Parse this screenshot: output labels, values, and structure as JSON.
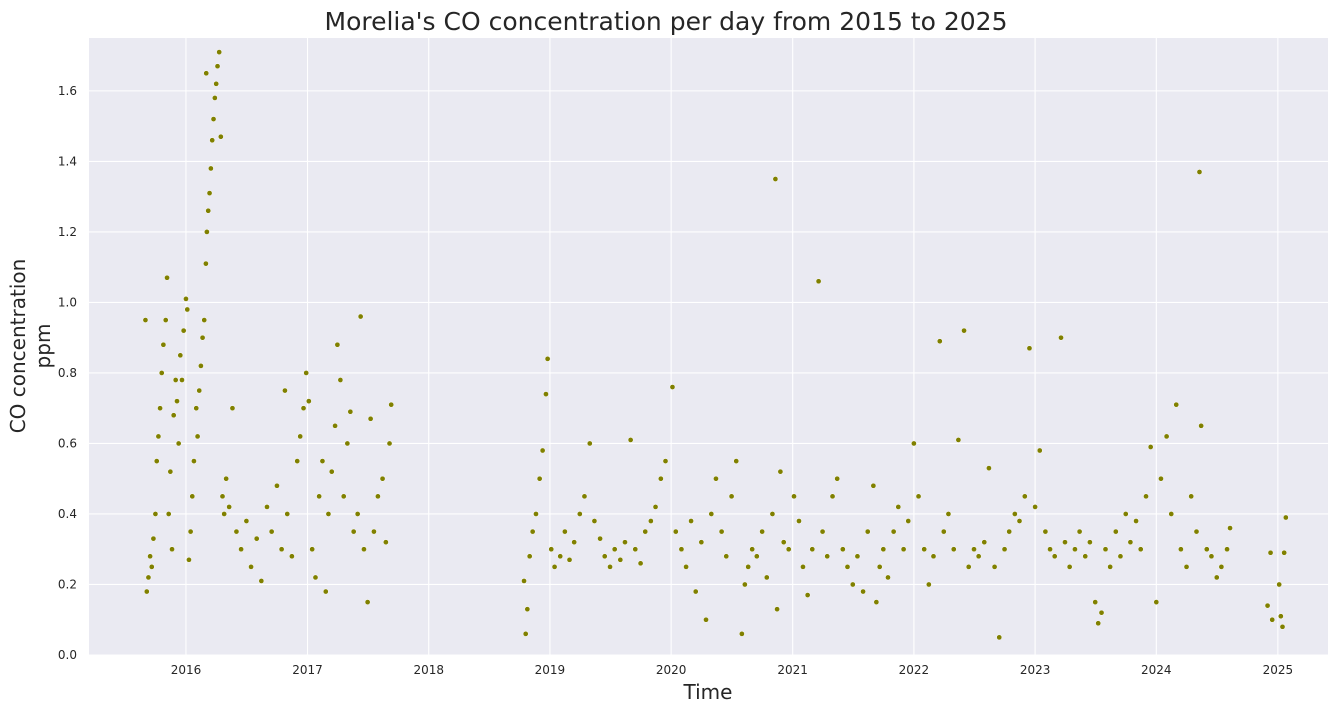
{
  "chart_data": {
    "type": "scatter",
    "title": "Morelia's CO concentration per day from 2015 to 2025",
    "xlabel": "Time",
    "ylabel_lines": [
      "CO concentration",
      "ppm"
    ],
    "x_axis": {
      "kind": "date",
      "range": [
        "2015-03-15",
        "2025-06-01"
      ],
      "tick_labels": [
        "2016",
        "2017",
        "2018",
        "2019",
        "2020",
        "2021",
        "2022",
        "2023",
        "2024",
        "2025"
      ]
    },
    "y_axis": {
      "range": [
        0.0,
        1.75
      ],
      "ticks": [
        0.0,
        0.2,
        0.4,
        0.6,
        0.8,
        1.0,
        1.2,
        1.4,
        1.6
      ]
    },
    "grid": true,
    "legend": "none",
    "colors": {
      "background": "#eaeaf2",
      "grid": "#ffffff",
      "marker": "#808000",
      "text": "#262626"
    },
    "series": [
      {
        "points": [
          [
            "2015-09-01",
            0.95
          ],
          [
            "2015-09-05",
            0.18
          ],
          [
            "2015-09-10",
            0.22
          ],
          [
            "2015-09-15",
            0.28
          ],
          [
            "2015-09-20",
            0.25
          ],
          [
            "2015-09-25",
            0.33
          ],
          [
            "2015-10-01",
            0.4
          ],
          [
            "2015-10-05",
            0.55
          ],
          [
            "2015-10-10",
            0.62
          ],
          [
            "2015-10-15",
            0.7
          ],
          [
            "2015-10-20",
            0.8
          ],
          [
            "2015-10-25",
            0.88
          ],
          [
            "2015-11-01",
            0.95
          ],
          [
            "2015-11-05",
            1.07
          ],
          [
            "2015-11-10",
            0.4
          ],
          [
            "2015-11-15",
            0.52
          ],
          [
            "2015-11-20",
            0.3
          ],
          [
            "2015-11-25",
            0.68
          ],
          [
            "2015-12-01",
            0.78
          ],
          [
            "2015-12-05",
            0.72
          ],
          [
            "2015-12-10",
            0.6
          ],
          [
            "2015-12-15",
            0.85
          ],
          [
            "2015-12-20",
            0.78
          ],
          [
            "2015-12-25",
            0.92
          ],
          [
            "2016-01-01",
            1.01
          ],
          [
            "2016-01-05",
            0.98
          ],
          [
            "2016-01-10",
            0.27
          ],
          [
            "2016-01-15",
            0.35
          ],
          [
            "2016-01-20",
            0.45
          ],
          [
            "2016-01-25",
            0.55
          ],
          [
            "2016-02-01",
            0.7
          ],
          [
            "2016-02-05",
            0.62
          ],
          [
            "2016-02-10",
            0.75
          ],
          [
            "2016-02-15",
            0.82
          ],
          [
            "2016-02-20",
            0.9
          ],
          [
            "2016-02-25",
            0.95
          ],
          [
            "2016-03-01",
            1.11
          ],
          [
            "2016-03-04",
            1.2
          ],
          [
            "2016-03-08",
            1.26
          ],
          [
            "2016-03-12",
            1.31
          ],
          [
            "2016-03-16",
            1.38
          ],
          [
            "2016-03-20",
            1.46
          ],
          [
            "2016-03-24",
            1.52
          ],
          [
            "2016-03-28",
            1.58
          ],
          [
            "2016-04-01",
            1.62
          ],
          [
            "2016-04-05",
            1.67
          ],
          [
            "2016-04-10",
            1.71
          ],
          [
            "2016-03-02",
            1.65
          ],
          [
            "2016-04-15",
            1.47
          ],
          [
            "2016-04-20",
            0.45
          ],
          [
            "2016-04-25",
            0.4
          ],
          [
            "2016-05-01",
            0.5
          ],
          [
            "2016-05-10",
            0.42
          ],
          [
            "2016-05-20",
            0.7
          ],
          [
            "2016-06-01",
            0.35
          ],
          [
            "2016-06-15",
            0.3
          ],
          [
            "2016-07-01",
            0.38
          ],
          [
            "2016-07-15",
            0.25
          ],
          [
            "2016-08-01",
            0.33
          ],
          [
            "2016-08-15",
            0.21
          ],
          [
            "2016-09-01",
            0.42
          ],
          [
            "2016-09-15",
            0.35
          ],
          [
            "2016-10-01",
            0.48
          ],
          [
            "2016-10-15",
            0.3
          ],
          [
            "2016-10-25",
            0.75
          ],
          [
            "2016-11-01",
            0.4
          ],
          [
            "2016-11-15",
            0.28
          ],
          [
            "2016-12-01",
            0.55
          ],
          [
            "2016-12-10",
            0.62
          ],
          [
            "2016-12-20",
            0.7
          ],
          [
            "2016-12-28",
            0.8
          ],
          [
            "2017-01-05",
            0.72
          ],
          [
            "2017-01-15",
            0.3
          ],
          [
            "2017-01-25",
            0.22
          ],
          [
            "2017-02-05",
            0.45
          ],
          [
            "2017-02-15",
            0.55
          ],
          [
            "2017-02-25",
            0.18
          ],
          [
            "2017-03-05",
            0.4
          ],
          [
            "2017-03-15",
            0.52
          ],
          [
            "2017-03-25",
            0.65
          ],
          [
            "2017-04-01",
            0.88
          ],
          [
            "2017-04-10",
            0.78
          ],
          [
            "2017-04-20",
            0.45
          ],
          [
            "2017-05-01",
            0.6
          ],
          [
            "2017-05-10",
            0.69
          ],
          [
            "2017-05-20",
            0.35
          ],
          [
            "2017-06-01",
            0.4
          ],
          [
            "2017-06-10",
            0.96
          ],
          [
            "2017-06-20",
            0.3
          ],
          [
            "2017-07-01",
            0.15
          ],
          [
            "2017-07-10",
            0.67
          ],
          [
            "2017-07-20",
            0.35
          ],
          [
            "2017-08-01",
            0.45
          ],
          [
            "2017-08-15",
            0.5
          ],
          [
            "2017-08-25",
            0.32
          ],
          [
            "2017-09-05",
            0.6
          ],
          [
            "2017-09-10",
            0.71
          ],
          [
            "2018-10-15",
            0.21
          ],
          [
            "2018-10-20",
            0.06
          ],
          [
            "2018-10-25",
            0.13
          ],
          [
            "2018-11-01",
            0.28
          ],
          [
            "2018-11-10",
            0.35
          ],
          [
            "2018-11-20",
            0.4
          ],
          [
            "2018-12-01",
            0.5
          ],
          [
            "2018-12-10",
            0.58
          ],
          [
            "2018-12-20",
            0.74
          ],
          [
            "2018-12-25",
            0.84
          ],
          [
            "2019-01-05",
            0.3
          ],
          [
            "2019-01-15",
            0.25
          ],
          [
            "2019-02-01",
            0.28
          ],
          [
            "2019-02-15",
            0.35
          ],
          [
            "2019-03-01",
            0.27
          ],
          [
            "2019-03-15",
            0.32
          ],
          [
            "2019-04-01",
            0.4
          ],
          [
            "2019-04-15",
            0.45
          ],
          [
            "2019-05-01",
            0.6
          ],
          [
            "2019-05-15",
            0.38
          ],
          [
            "2019-06-01",
            0.33
          ],
          [
            "2019-06-15",
            0.28
          ],
          [
            "2019-07-01",
            0.25
          ],
          [
            "2019-07-15",
            0.3
          ],
          [
            "2019-08-01",
            0.27
          ],
          [
            "2019-08-15",
            0.32
          ],
          [
            "2019-09-01",
            0.61
          ],
          [
            "2019-09-15",
            0.3
          ],
          [
            "2019-10-01",
            0.26
          ],
          [
            "2019-10-15",
            0.35
          ],
          [
            "2019-11-01",
            0.38
          ],
          [
            "2019-11-15",
            0.42
          ],
          [
            "2019-12-01",
            0.5
          ],
          [
            "2019-12-15",
            0.55
          ],
          [
            "2020-01-05",
            0.76
          ],
          [
            "2020-01-15",
            0.35
          ],
          [
            "2020-02-01",
            0.3
          ],
          [
            "2020-02-15",
            0.25
          ],
          [
            "2020-03-01",
            0.38
          ],
          [
            "2020-03-15",
            0.18
          ],
          [
            "2020-04-01",
            0.32
          ],
          [
            "2020-04-15",
            0.1
          ],
          [
            "2020-05-01",
            0.4
          ],
          [
            "2020-05-15",
            0.5
          ],
          [
            "2020-06-01",
            0.35
          ],
          [
            "2020-06-15",
            0.28
          ],
          [
            "2020-07-01",
            0.45
          ],
          [
            "2020-07-15",
            0.55
          ],
          [
            "2020-08-01",
            0.06
          ],
          [
            "2020-08-10",
            0.2
          ],
          [
            "2020-08-20",
            0.25
          ],
          [
            "2020-09-01",
            0.3
          ],
          [
            "2020-09-15",
            0.28
          ],
          [
            "2020-10-01",
            0.35
          ],
          [
            "2020-10-15",
            0.22
          ],
          [
            "2020-11-01",
            0.4
          ],
          [
            "2020-11-10",
            1.35
          ],
          [
            "2020-11-15",
            0.13
          ],
          [
            "2020-11-25",
            0.52
          ],
          [
            "2020-12-05",
            0.32
          ],
          [
            "2020-12-20",
            0.3
          ],
          [
            "2021-01-05",
            0.45
          ],
          [
            "2021-01-20",
            0.38
          ],
          [
            "2021-02-01",
            0.25
          ],
          [
            "2021-02-15",
            0.17
          ],
          [
            "2021-03-01",
            0.3
          ],
          [
            "2021-03-20",
            1.06
          ],
          [
            "2021-04-01",
            0.35
          ],
          [
            "2021-04-15",
            0.28
          ],
          [
            "2021-05-01",
            0.45
          ],
          [
            "2021-05-15",
            0.5
          ],
          [
            "2021-06-01",
            0.3
          ],
          [
            "2021-06-15",
            0.25
          ],
          [
            "2021-07-01",
            0.2
          ],
          [
            "2021-07-15",
            0.28
          ],
          [
            "2021-08-01",
            0.18
          ],
          [
            "2021-08-15",
            0.35
          ],
          [
            "2021-09-01",
            0.48
          ],
          [
            "2021-09-10",
            0.15
          ],
          [
            "2021-09-20",
            0.25
          ],
          [
            "2021-10-01",
            0.3
          ],
          [
            "2021-10-15",
            0.22
          ],
          [
            "2021-11-01",
            0.35
          ],
          [
            "2021-11-15",
            0.42
          ],
          [
            "2021-12-01",
            0.3
          ],
          [
            "2021-12-15",
            0.38
          ],
          [
            "2022-01-01",
            0.6
          ],
          [
            "2022-01-15",
            0.45
          ],
          [
            "2022-02-01",
            0.3
          ],
          [
            "2022-02-15",
            0.2
          ],
          [
            "2022-03-01",
            0.28
          ],
          [
            "2022-03-20",
            0.89
          ],
          [
            "2022-04-01",
            0.35
          ],
          [
            "2022-04-15",
            0.4
          ],
          [
            "2022-05-01",
            0.3
          ],
          [
            "2022-05-15",
            0.61
          ],
          [
            "2022-06-01",
            0.92
          ],
          [
            "2022-06-15",
            0.25
          ],
          [
            "2022-07-01",
            0.3
          ],
          [
            "2022-07-15",
            0.28
          ],
          [
            "2022-08-01",
            0.32
          ],
          [
            "2022-08-15",
            0.53
          ],
          [
            "2022-09-01",
            0.25
          ],
          [
            "2022-09-15",
            0.05
          ],
          [
            "2022-10-01",
            0.3
          ],
          [
            "2022-10-15",
            0.35
          ],
          [
            "2022-11-01",
            0.4
          ],
          [
            "2022-11-15",
            0.38
          ],
          [
            "2022-12-01",
            0.45
          ],
          [
            "2022-12-15",
            0.87
          ],
          [
            "2023-01-01",
            0.42
          ],
          [
            "2023-01-15",
            0.58
          ],
          [
            "2023-02-01",
            0.35
          ],
          [
            "2023-02-15",
            0.3
          ],
          [
            "2023-03-01",
            0.28
          ],
          [
            "2023-03-20",
            0.9
          ],
          [
            "2023-04-01",
            0.32
          ],
          [
            "2023-04-15",
            0.25
          ],
          [
            "2023-05-01",
            0.3
          ],
          [
            "2023-05-15",
            0.35
          ],
          [
            "2023-06-01",
            0.28
          ],
          [
            "2023-06-15",
            0.32
          ],
          [
            "2023-07-01",
            0.15
          ],
          [
            "2023-07-10",
            0.09
          ],
          [
            "2023-07-20",
            0.12
          ],
          [
            "2023-08-01",
            0.3
          ],
          [
            "2023-08-15",
            0.25
          ],
          [
            "2023-09-01",
            0.35
          ],
          [
            "2023-09-15",
            0.28
          ],
          [
            "2023-10-01",
            0.4
          ],
          [
            "2023-10-15",
            0.32
          ],
          [
            "2023-11-01",
            0.38
          ],
          [
            "2023-11-15",
            0.3
          ],
          [
            "2023-12-01",
            0.45
          ],
          [
            "2023-12-15",
            0.59
          ],
          [
            "2024-01-01",
            0.15
          ],
          [
            "2024-01-15",
            0.5
          ],
          [
            "2024-02-01",
            0.62
          ],
          [
            "2024-02-15",
            0.4
          ],
          [
            "2024-03-01",
            0.71
          ],
          [
            "2024-03-15",
            0.3
          ],
          [
            "2024-04-01",
            0.25
          ],
          [
            "2024-04-15",
            0.45
          ],
          [
            "2024-05-01",
            0.35
          ],
          [
            "2024-05-10",
            1.37
          ],
          [
            "2024-05-15",
            0.65
          ],
          [
            "2024-06-01",
            0.3
          ],
          [
            "2024-06-15",
            0.28
          ],
          [
            "2024-07-01",
            0.22
          ],
          [
            "2024-07-15",
            0.25
          ],
          [
            "2024-08-01",
            0.3
          ],
          [
            "2024-08-10",
            0.36
          ],
          [
            "2024-12-01",
            0.14
          ],
          [
            "2024-12-10",
            0.29
          ],
          [
            "2024-12-15",
            0.1
          ],
          [
            "2025-01-05",
            0.2
          ],
          [
            "2025-01-10",
            0.11
          ],
          [
            "2025-01-15",
            0.08
          ],
          [
            "2025-01-20",
            0.29
          ],
          [
            "2025-01-25",
            0.39
          ]
        ]
      }
    ]
  }
}
